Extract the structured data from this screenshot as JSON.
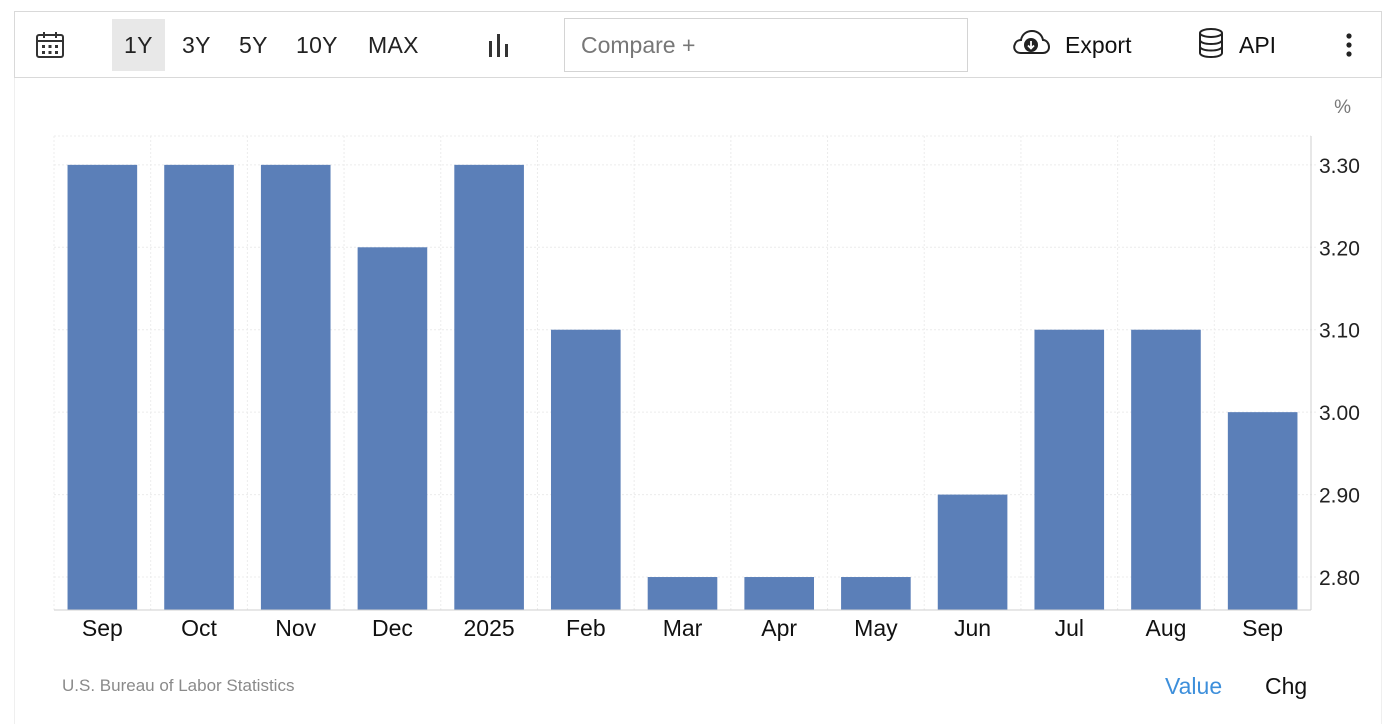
{
  "toolbar": {
    "calendar_icon": "calendar-icon",
    "ranges": [
      "1Y",
      "3Y",
      "5Y",
      "10Y",
      "MAX"
    ],
    "active_range": "1Y",
    "chart_type_icon": "bar-chart-icon",
    "compare_placeholder": "Compare +",
    "export_label": "Export",
    "export_icon": "cloud-download-icon",
    "api_label": "API",
    "api_icon": "database-icon",
    "more_icon": "vertical-dots-icon"
  },
  "chart_data": {
    "type": "bar",
    "unit": "%",
    "categories": [
      "Sep",
      "Oct",
      "Nov",
      "Dec",
      "2025",
      "Feb",
      "Mar",
      "Apr",
      "May",
      "Jun",
      "Jul",
      "Aug",
      "Sep"
    ],
    "values": [
      3.3,
      3.3,
      3.3,
      3.2,
      3.3,
      3.1,
      2.8,
      2.8,
      2.8,
      2.9,
      3.1,
      3.1,
      3.0
    ],
    "y_ticks": [
      "3.30",
      "3.20",
      "3.10",
      "3.00",
      "2.90",
      "2.80"
    ],
    "ylim": [
      2.76,
      3.335
    ],
    "y_axis_side": "right",
    "grid": true,
    "bar_color": "#5b7fb8"
  },
  "footer": {
    "source": "U.S. Bureau of Labor Statistics",
    "value_tab": "Value",
    "chg_tab": "Chg"
  },
  "colors": {
    "active_tab": "#3d8fdb",
    "active_range_bg": "#e8e8e8"
  }
}
